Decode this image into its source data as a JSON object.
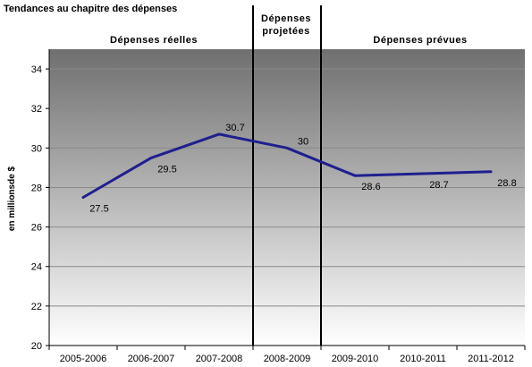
{
  "chart_data": {
    "type": "line",
    "title": "Tendances au chapitre des dépenses",
    "ylabel": "en millionsde $",
    "xlabel": "",
    "categories": [
      "2005-2006",
      "2006-2007",
      "2007-2008",
      "2008-2009",
      "2009-2010",
      "2010-2011",
      "2011-2012"
    ],
    "series": [
      {
        "values": [
          27.5,
          29.5,
          30.7,
          30,
          28.6,
          28.7,
          28.8
        ]
      }
    ],
    "data_labels": [
      "27.5",
      "29.5",
      "30.7",
      "30",
      "28.6",
      "28.7",
      "28.8"
    ],
    "ylim": [
      20,
      35
    ],
    "yticks": [
      20,
      22,
      24,
      26,
      28,
      30,
      32,
      34
    ],
    "grid": true,
    "sections": [
      {
        "label": "Dépenses réelles",
        "from": 0,
        "to": 2
      },
      {
        "label_lines": [
          "Dépenses",
          "projetées"
        ],
        "from": 3,
        "to": 3
      },
      {
        "label": "Dépenses prévues",
        "from": 4,
        "to": 6
      }
    ],
    "colors": {
      "line": "#1f1f8f",
      "plot_top": "#6f6f6f",
      "plot_bottom": "#ffffff"
    }
  }
}
